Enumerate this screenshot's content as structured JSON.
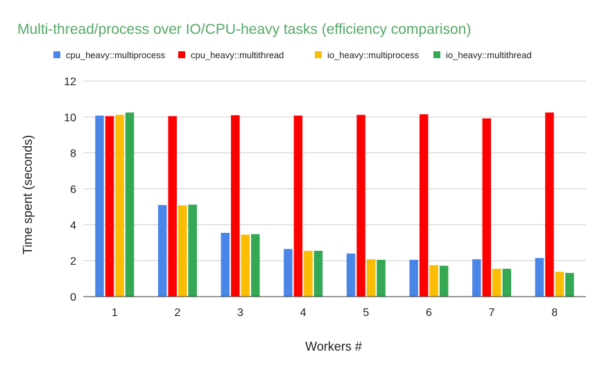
{
  "chart_data": {
    "type": "bar",
    "title": "Multi-thread/process over IO/CPU-heavy tasks (efficiency comparison)",
    "xlabel": "Workers #",
    "ylabel": "Time spent (seconds)",
    "categories": [
      "1",
      "2",
      "3",
      "4",
      "5",
      "6",
      "7",
      "8"
    ],
    "ylim": [
      0,
      12
    ],
    "yticks": [
      0,
      2,
      4,
      6,
      8,
      10,
      12
    ],
    "grid": true,
    "legend_position": "top",
    "series": [
      {
        "name": "cpu_heavy::multiprocess",
        "color": "#4a86e8",
        "values": [
          10.08,
          5.1,
          3.55,
          2.65,
          2.4,
          2.05,
          2.08,
          2.15
        ]
      },
      {
        "name": "cpu_heavy::multithread",
        "color": "#ff0000",
        "values": [
          10.05,
          10.05,
          10.1,
          10.08,
          10.12,
          10.15,
          9.92,
          10.25
        ]
      },
      {
        "name": "io_heavy::multiprocess",
        "color": "#fbbc04",
        "values": [
          10.12,
          5.08,
          3.45,
          2.55,
          2.08,
          1.75,
          1.55,
          1.38
        ]
      },
      {
        "name": "io_heavy::multithread",
        "color": "#34a853",
        "values": [
          10.25,
          5.12,
          3.48,
          2.55,
          2.05,
          1.72,
          1.55,
          1.32
        ]
      }
    ],
    "colors": {
      "title": "#57a868",
      "text": "#222222",
      "grid": "#cccccc",
      "axis": "#333333"
    }
  }
}
